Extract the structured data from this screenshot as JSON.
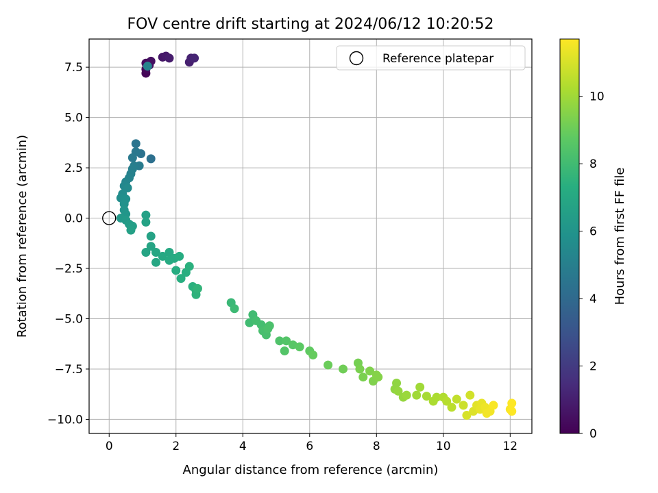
{
  "chart_data": {
    "type": "scatter",
    "title": "FOV centre drift starting at 2024/06/12 10:20:52",
    "xlabel": "Angular distance from reference (arcmin)",
    "ylabel": "Rotation from reference (arcmin)",
    "xlim": [
      -0.6,
      12.65
    ],
    "ylim": [
      -10.7,
      8.9
    ],
    "xticks": [
      0,
      2,
      4,
      6,
      8,
      10,
      12
    ],
    "yticks": [
      -10.0,
      -7.5,
      -5.0,
      -2.5,
      0.0,
      2.5,
      5.0,
      7.5
    ],
    "xtick_labels": [
      "0",
      "2",
      "4",
      "6",
      "8",
      "10",
      "12"
    ],
    "ytick_labels": [
      "−10.0",
      "−7.5",
      "−5.0",
      "−2.5",
      "0.0",
      "2.5",
      "5.0",
      "7.5"
    ],
    "grid": true,
    "legend": {
      "position": "top-right",
      "entries": [
        "Reference platepar"
      ]
    },
    "colorbar": {
      "label": "Hours from first FF file",
      "range": [
        0,
        11.7
      ],
      "ticks": [
        0,
        2,
        4,
        6,
        8,
        10
      ],
      "tick_labels": [
        "0",
        "2",
        "4",
        "6",
        "8",
        "10"
      ],
      "colormap": "viridis"
    },
    "reference_point": {
      "x": 0,
      "y": 0
    },
    "points": [
      {
        "x": 1.1,
        "y": 7.2,
        "c": 0.1
      },
      {
        "x": 1.1,
        "y": 7.4,
        "c": 0.2
      },
      {
        "x": 1.1,
        "y": 7.7,
        "c": 0.3
      },
      {
        "x": 1.2,
        "y": 7.6,
        "c": 0.4
      },
      {
        "x": 1.25,
        "y": 7.8,
        "c": 0.5
      },
      {
        "x": 1.6,
        "y": 8.0,
        "c": 0.7
      },
      {
        "x": 1.7,
        "y": 8.05,
        "c": 0.8
      },
      {
        "x": 1.8,
        "y": 7.95,
        "c": 0.9
      },
      {
        "x": 2.4,
        "y": 7.75,
        "c": 1.0
      },
      {
        "x": 2.45,
        "y": 7.95,
        "c": 1.1
      },
      {
        "x": 2.55,
        "y": 7.95,
        "c": 1.2
      },
      {
        "x": 1.15,
        "y": 7.55,
        "c": 5.2
      },
      {
        "x": 1.25,
        "y": 2.95,
        "c": 4.3
      },
      {
        "x": 0.95,
        "y": 3.2,
        "c": 4.4
      },
      {
        "x": 0.8,
        "y": 3.7,
        "c": 4.5
      },
      {
        "x": 0.8,
        "y": 3.3,
        "c": 4.6
      },
      {
        "x": 0.7,
        "y": 3.0,
        "c": 4.7
      },
      {
        "x": 0.9,
        "y": 2.6,
        "c": 4.8
      },
      {
        "x": 0.75,
        "y": 2.6,
        "c": 4.9
      },
      {
        "x": 0.7,
        "y": 2.45,
        "c": 5.0
      },
      {
        "x": 0.65,
        "y": 2.2,
        "c": 5.1
      },
      {
        "x": 0.6,
        "y": 2.0,
        "c": 5.2
      },
      {
        "x": 0.5,
        "y": 1.8,
        "c": 5.3
      },
      {
        "x": 0.45,
        "y": 1.6,
        "c": 5.4
      },
      {
        "x": 0.55,
        "y": 1.5,
        "c": 5.5
      },
      {
        "x": 0.4,
        "y": 1.2,
        "c": 5.6
      },
      {
        "x": 0.35,
        "y": 1.0,
        "c": 5.7
      },
      {
        "x": 0.5,
        "y": 0.95,
        "c": 5.8
      },
      {
        "x": 0.45,
        "y": 0.7,
        "c": 5.9
      },
      {
        "x": 0.45,
        "y": 0.4,
        "c": 6.0
      },
      {
        "x": 0.5,
        "y": 0.2,
        "c": 6.1
      },
      {
        "x": 0.35,
        "y": 0.0,
        "c": 6.2
      },
      {
        "x": 0.5,
        "y": -0.1,
        "c": 6.3
      },
      {
        "x": 0.6,
        "y": -0.3,
        "c": 6.4
      },
      {
        "x": 0.7,
        "y": -0.4,
        "c": 6.5
      },
      {
        "x": 0.65,
        "y": -0.6,
        "c": 6.6
      },
      {
        "x": 1.1,
        "y": 0.15,
        "c": 6.6
      },
      {
        "x": 1.1,
        "y": -0.2,
        "c": 6.7
      },
      {
        "x": 1.25,
        "y": -0.9,
        "c": 6.7
      },
      {
        "x": 1.25,
        "y": -1.4,
        "c": 6.8
      },
      {
        "x": 1.1,
        "y": -1.7,
        "c": 6.8
      },
      {
        "x": 1.4,
        "y": -1.7,
        "c": 6.9
      },
      {
        "x": 1.4,
        "y": -2.2,
        "c": 6.9
      },
      {
        "x": 1.6,
        "y": -1.9,
        "c": 7.0
      },
      {
        "x": 1.8,
        "y": -1.7,
        "c": 7.0
      },
      {
        "x": 1.8,
        "y": -2.1,
        "c": 7.1
      },
      {
        "x": 1.95,
        "y": -2.0,
        "c": 7.1
      },
      {
        "x": 2.1,
        "y": -1.9,
        "c": 7.2
      },
      {
        "x": 2.0,
        "y": -2.6,
        "c": 7.2
      },
      {
        "x": 2.15,
        "y": -3.0,
        "c": 7.3
      },
      {
        "x": 2.3,
        "y": -2.7,
        "c": 7.3
      },
      {
        "x": 2.4,
        "y": -2.4,
        "c": 7.4
      },
      {
        "x": 2.5,
        "y": -3.4,
        "c": 7.4
      },
      {
        "x": 2.6,
        "y": -3.6,
        "c": 7.5
      },
      {
        "x": 2.6,
        "y": -3.8,
        "c": 7.5
      },
      {
        "x": 2.65,
        "y": -3.5,
        "c": 7.6
      },
      {
        "x": 3.65,
        "y": -4.2,
        "c": 7.8
      },
      {
        "x": 3.75,
        "y": -4.5,
        "c": 7.9
      },
      {
        "x": 4.2,
        "y": -5.2,
        "c": 8.0
      },
      {
        "x": 4.3,
        "y": -4.8,
        "c": 8.0
      },
      {
        "x": 4.4,
        "y": -5.1,
        "c": 8.1
      },
      {
        "x": 4.55,
        "y": -5.3,
        "c": 8.1
      },
      {
        "x": 4.6,
        "y": -5.6,
        "c": 8.2
      },
      {
        "x": 4.7,
        "y": -5.8,
        "c": 8.2
      },
      {
        "x": 4.75,
        "y": -5.5,
        "c": 8.3
      },
      {
        "x": 4.8,
        "y": -5.35,
        "c": 8.3
      },
      {
        "x": 5.1,
        "y": -6.1,
        "c": 8.4
      },
      {
        "x": 5.25,
        "y": -6.6,
        "c": 8.5
      },
      {
        "x": 5.3,
        "y": -6.1,
        "c": 8.5
      },
      {
        "x": 5.5,
        "y": -6.3,
        "c": 8.6
      },
      {
        "x": 5.7,
        "y": -6.4,
        "c": 8.7
      },
      {
        "x": 6.0,
        "y": -6.6,
        "c": 8.8
      },
      {
        "x": 6.1,
        "y": -6.8,
        "c": 8.9
      },
      {
        "x": 6.55,
        "y": -7.3,
        "c": 9.0
      },
      {
        "x": 7.0,
        "y": -7.5,
        "c": 9.1
      },
      {
        "x": 7.45,
        "y": -7.2,
        "c": 9.2
      },
      {
        "x": 7.5,
        "y": -7.5,
        "c": 9.3
      },
      {
        "x": 7.6,
        "y": -7.9,
        "c": 9.3
      },
      {
        "x": 7.8,
        "y": -7.6,
        "c": 9.4
      },
      {
        "x": 7.9,
        "y": -8.1,
        "c": 9.4
      },
      {
        "x": 8.0,
        "y": -7.8,
        "c": 9.5
      },
      {
        "x": 8.05,
        "y": -7.9,
        "c": 9.5
      },
      {
        "x": 8.55,
        "y": -8.5,
        "c": 9.7
      },
      {
        "x": 8.6,
        "y": -8.2,
        "c": 9.7
      },
      {
        "x": 8.65,
        "y": -8.6,
        "c": 9.8
      },
      {
        "x": 8.8,
        "y": -8.9,
        "c": 9.8
      },
      {
        "x": 8.9,
        "y": -8.8,
        "c": 9.9
      },
      {
        "x": 9.2,
        "y": -8.8,
        "c": 10.0
      },
      {
        "x": 9.3,
        "y": -8.4,
        "c": 10.0
      },
      {
        "x": 9.5,
        "y": -8.85,
        "c": 10.1
      },
      {
        "x": 9.7,
        "y": -9.1,
        "c": 10.2
      },
      {
        "x": 9.8,
        "y": -8.9,
        "c": 10.2
      },
      {
        "x": 10.0,
        "y": -8.9,
        "c": 10.3
      },
      {
        "x": 10.1,
        "y": -9.1,
        "c": 10.4
      },
      {
        "x": 10.25,
        "y": -9.4,
        "c": 10.5
      },
      {
        "x": 10.4,
        "y": -9.0,
        "c": 10.6
      },
      {
        "x": 10.6,
        "y": -9.3,
        "c": 10.8
      },
      {
        "x": 10.8,
        "y": -8.8,
        "c": 10.9
      },
      {
        "x": 10.7,
        "y": -9.8,
        "c": 11.0
      },
      {
        "x": 10.9,
        "y": -9.6,
        "c": 11.1
      },
      {
        "x": 11.0,
        "y": -9.3,
        "c": 11.2
      },
      {
        "x": 11.1,
        "y": -9.5,
        "c": 11.3
      },
      {
        "x": 11.15,
        "y": -9.2,
        "c": 11.3
      },
      {
        "x": 11.25,
        "y": -9.4,
        "c": 11.4
      },
      {
        "x": 11.3,
        "y": -9.7,
        "c": 11.5
      },
      {
        "x": 11.4,
        "y": -9.6,
        "c": 11.5
      },
      {
        "x": 11.5,
        "y": -9.3,
        "c": 11.6
      },
      {
        "x": 12.0,
        "y": -9.5,
        "c": 11.6
      },
      {
        "x": 12.05,
        "y": -9.2,
        "c": 11.7
      },
      {
        "x": 12.05,
        "y": -9.6,
        "c": 11.7
      }
    ]
  }
}
